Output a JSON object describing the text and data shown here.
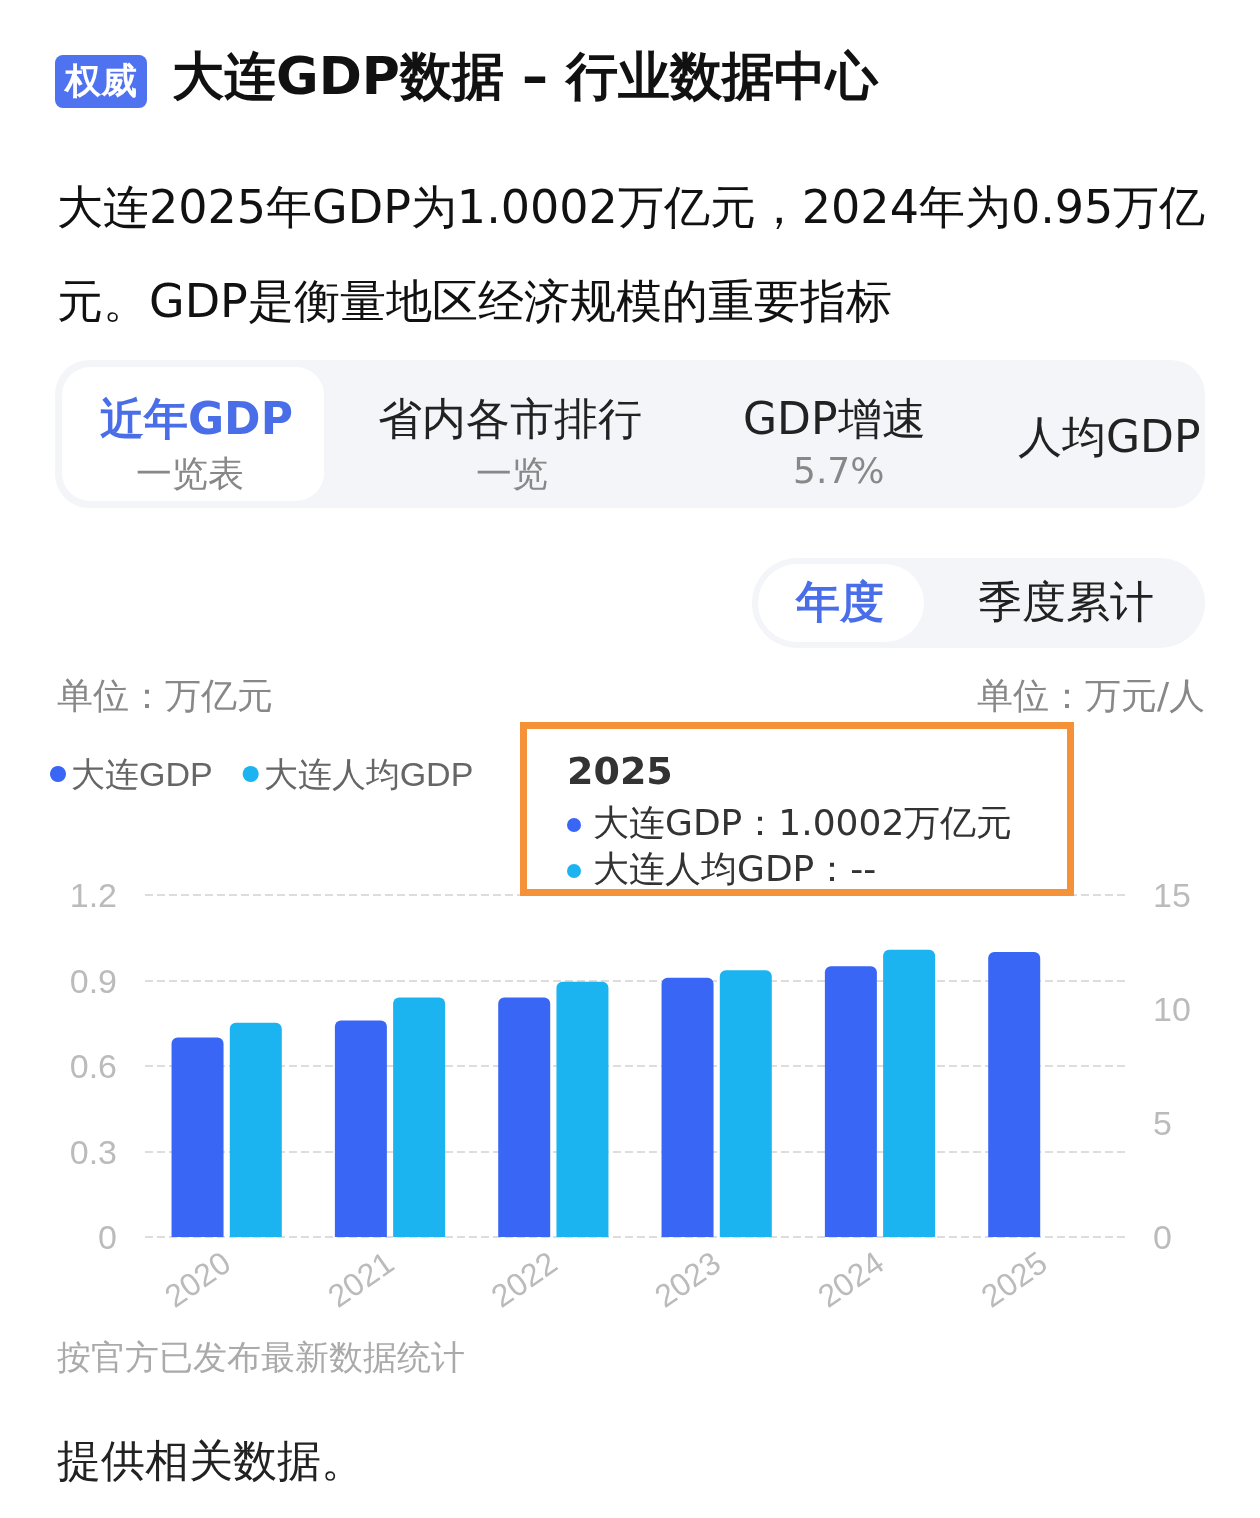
{
  "chart_data": {
    "type": "bar",
    "title": "大连GDP数据 – 行业数据中心",
    "subtitle": "大连2025年GDP为1.0002万亿元，2024年为0.95万亿元。GDP是衡量地区经济规模的重要指标",
    "annotations": [
      "权威",
      "近年GDP",
      "一览表",
      "省内各市排行",
      "一览",
      "GDP增速",
      "5.7%",
      "人均GDP",
      "年度",
      "季度累计",
      "2025",
      "大连GDP：1.0002万亿元",
      "大连人均GDP：--",
      "按官方已发布最新数据统计",
      "提供相关数据。"
    ],
    "ylabel": "单位：万亿元",
    "y2label": "单位：万元/人",
    "categories": [
      "2020",
      "2021",
      "2022",
      "2023",
      "2024",
      "2025"
    ],
    "series": [
      {
        "name": "大连GDP",
        "color": "#3a66f5",
        "values": [
          0.7,
          0.76,
          0.84,
          0.91,
          0.95,
          1.0002
        ]
      },
      {
        "name": "大连人均GDP",
        "color": "#1cb4f0",
        "axis": "y2",
        "values": [
          9.4,
          10.5,
          11.2,
          11.7,
          12.6,
          null
        ]
      }
    ],
    "ylim": [
      0,
      1.2
    ],
    "yticks": [
      0,
      0.3,
      0.6,
      0.9,
      1.2
    ],
    "y2lim": [
      0,
      15
    ],
    "y2ticks": [
      0,
      5,
      10,
      15
    ],
    "grid": "y",
    "legend": "top left"
  }
}
